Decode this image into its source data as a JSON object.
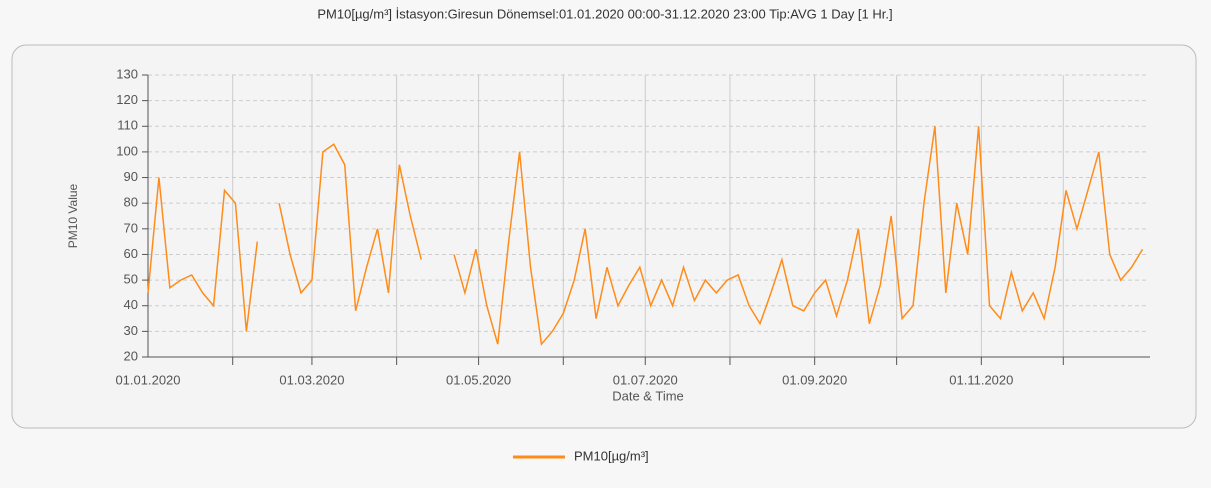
{
  "chart_data": {
    "type": "line",
    "title": "PM10[µg/m³] İstasyon:Giresun  Dönemsel:01.01.2020 00:00-31.12.2020 23:00  Tip:AVG 1 Day [1 Hr.]",
    "xlabel": "Date & Time",
    "ylabel": "PM10 Value",
    "x": [
      "2020-01-01",
      "2020-01-05",
      "2020-01-09",
      "2020-01-13",
      "2020-01-17",
      "2020-01-21",
      "2020-01-25",
      "2020-01-29",
      "2020-02-02",
      "2020-02-06",
      "2020-02-10",
      "2020-02-14",
      "2020-02-18",
      "2020-02-22",
      "2020-02-26",
      "2020-03-01",
      "2020-03-05",
      "2020-03-09",
      "2020-03-13",
      "2020-03-17",
      "2020-03-21",
      "2020-03-25",
      "2020-03-29",
      "2020-04-02",
      "2020-04-06",
      "2020-04-10",
      "2020-04-14",
      "2020-04-18",
      "2020-04-22",
      "2020-04-26",
      "2020-04-30",
      "2020-05-04",
      "2020-05-08",
      "2020-05-12",
      "2020-05-16",
      "2020-05-20",
      "2020-05-24",
      "2020-05-28",
      "2020-06-01",
      "2020-06-05",
      "2020-06-09",
      "2020-06-13",
      "2020-06-17",
      "2020-06-21",
      "2020-06-25",
      "2020-06-29",
      "2020-07-03",
      "2020-07-07",
      "2020-07-11",
      "2020-07-15",
      "2020-07-19",
      "2020-07-23",
      "2020-07-27",
      "2020-07-31",
      "2020-08-04",
      "2020-08-08",
      "2020-08-12",
      "2020-08-16",
      "2020-08-20",
      "2020-08-24",
      "2020-08-28",
      "2020-09-01",
      "2020-09-05",
      "2020-09-09",
      "2020-09-13",
      "2020-09-17",
      "2020-09-21",
      "2020-09-25",
      "2020-09-29",
      "2020-10-03",
      "2020-10-07",
      "2020-10-11",
      "2020-10-15",
      "2020-10-19",
      "2020-10-23",
      "2020-10-27",
      "2020-10-31",
      "2020-11-04",
      "2020-11-08",
      "2020-11-12",
      "2020-11-16",
      "2020-11-20",
      "2020-11-24",
      "2020-11-28",
      "2020-12-02",
      "2020-12-06",
      "2020-12-10",
      "2020-12-14",
      "2020-12-18",
      "2020-12-22",
      "2020-12-26",
      "2020-12-30"
    ],
    "series": [
      {
        "name": "PM10[µg/m³]",
        "color": "#ff8c1a",
        "values": [
          45,
          90,
          47,
          50,
          52,
          45,
          40,
          85,
          80,
          30,
          65,
          null,
          80,
          60,
          45,
          50,
          100,
          103,
          95,
          38,
          55,
          70,
          45,
          95,
          75,
          58,
          null,
          null,
          60,
          45,
          62,
          40,
          25,
          65,
          100,
          55,
          25,
          30,
          37,
          50,
          70,
          35,
          55,
          40,
          48,
          55,
          40,
          50,
          40,
          55,
          42,
          50,
          45,
          50,
          52,
          40,
          33,
          45,
          58,
          40,
          38,
          45,
          50,
          36,
          50,
          70,
          33,
          48,
          75,
          35,
          40,
          80,
          110,
          45,
          80,
          60,
          110,
          40,
          35,
          53,
          38,
          45,
          35,
          55,
          85,
          70,
          85,
          100,
          60,
          50,
          55,
          62
        ]
      }
    ],
    "xlim": [
      "2020-01-01",
      "2021-01-01"
    ],
    "xticks": [
      {
        "value": "2020-01-01",
        "label": "01.01.2020"
      },
      {
        "value": "2020-03-01",
        "label": "01.03.2020"
      },
      {
        "value": "2020-05-01",
        "label": "01.05.2020"
      },
      {
        "value": "2020-07-01",
        "label": "01.07.2020"
      },
      {
        "value": "2020-09-01",
        "label": "01.09.2020"
      },
      {
        "value": "2020-11-01",
        "label": "01.11.2020"
      }
    ],
    "xgrid": [
      "2020-02-01",
      "2020-03-01",
      "2020-04-01",
      "2020-05-01",
      "2020-06-01",
      "2020-07-01",
      "2020-08-01",
      "2020-09-01",
      "2020-10-01",
      "2020-11-01",
      "2020-12-01"
    ],
    "ylim": [
      20,
      130
    ],
    "yticks": [
      20,
      30,
      40,
      50,
      60,
      70,
      80,
      90,
      100,
      110,
      120,
      130
    ],
    "grid": true,
    "legend": "bottom"
  }
}
